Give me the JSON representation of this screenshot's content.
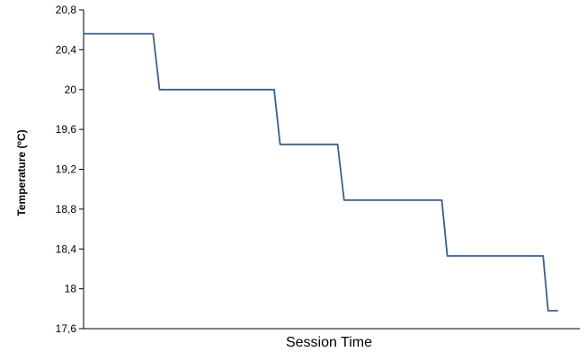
{
  "chart_data": {
    "type": "line",
    "title": "",
    "xlabel": "Session Time",
    "ylabel": "Temperature (ºC)",
    "ylim": [
      17.6,
      20.8
    ],
    "yticks": [
      "17,6",
      "18",
      "18,4",
      "18,8",
      "19,2",
      "19,6",
      "20",
      "20,4",
      "20,8"
    ],
    "ytick_values": [
      17.6,
      18.0,
      18.4,
      18.8,
      19.2,
      19.6,
      20.0,
      20.4,
      20.8
    ],
    "xlim": [
      0,
      100
    ],
    "grid": false,
    "legend": "none",
    "colors": {
      "line": "#3a5f8f",
      "axis": "#000000"
    },
    "series": [
      {
        "x": [
          0,
          14,
          15.3,
          38.4,
          39.6,
          51.2,
          52.5,
          72.2,
          73.3,
          92.6,
          93.6,
          95.6
        ],
        "values": [
          20.56,
          20.56,
          20.0,
          20.0,
          19.45,
          19.45,
          18.89,
          18.89,
          18.33,
          18.33,
          17.78,
          17.78
        ]
      }
    ]
  }
}
